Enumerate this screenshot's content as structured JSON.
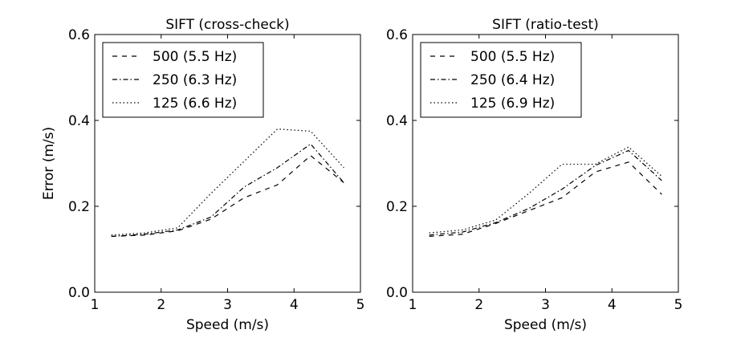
{
  "chart_data": [
    {
      "type": "line",
      "title": "SIFT (cross-check)",
      "xlabel": "Speed (m/s)",
      "ylabel": "Error (m/s)",
      "xlim": [
        1,
        5
      ],
      "ylim": [
        0,
        0.6
      ],
      "xticks": [
        "1",
        "2",
        "3",
        "4",
        "5"
      ],
      "yticks": [
        "0.0",
        "0.2",
        "0.4",
        "0.6"
      ],
      "grid": false,
      "legend_position": "top-left",
      "series": [
        {
          "name": "500 (5.5 Hz)",
          "dash": "dashed",
          "x": [
            1.25,
            1.75,
            2.25,
            2.75,
            3.25,
            3.75,
            4.25,
            4.75
          ],
          "y": [
            0.13,
            0.133,
            0.143,
            0.17,
            0.22,
            0.25,
            0.318,
            0.255
          ]
        },
        {
          "name": "250 (6.3 Hz)",
          "dash": "dashdot",
          "x": [
            1.25,
            1.75,
            2.25,
            2.75,
            3.25,
            3.75,
            4.25,
            4.75
          ],
          "y": [
            0.13,
            0.135,
            0.145,
            0.175,
            0.245,
            0.29,
            0.345,
            0.255
          ]
        },
        {
          "name": "125 (6.6 Hz)",
          "dash": "dotted",
          "x": [
            1.25,
            1.75,
            2.25,
            2.75,
            3.25,
            3.75,
            4.25,
            4.75
          ],
          "y": [
            0.133,
            0.138,
            0.15,
            0.23,
            0.305,
            0.38,
            0.375,
            0.29
          ]
        }
      ]
    },
    {
      "type": "line",
      "title": "SIFT (ratio-test)",
      "xlabel": "Speed (m/s)",
      "ylabel": "",
      "xlim": [
        1,
        5
      ],
      "ylim": [
        0,
        0.6
      ],
      "xticks": [
        "1",
        "2",
        "3",
        "4",
        "5"
      ],
      "yticks": [
        "0.0",
        "0.2",
        "0.4",
        "0.6"
      ],
      "grid": false,
      "legend_position": "top-left",
      "series": [
        {
          "name": "500 (5.5 Hz)",
          "dash": "dashed",
          "x": [
            1.25,
            1.75,
            2.25,
            2.75,
            3.25,
            3.75,
            4.25,
            4.75
          ],
          "y": [
            0.13,
            0.135,
            0.16,
            0.19,
            0.22,
            0.28,
            0.303,
            0.228
          ]
        },
        {
          "name": "250 (6.4 Hz)",
          "dash": "dashdot",
          "x": [
            1.25,
            1.75,
            2.25,
            2.75,
            3.25,
            3.75,
            4.25,
            4.75
          ],
          "y": [
            0.133,
            0.14,
            0.162,
            0.195,
            0.24,
            0.295,
            0.33,
            0.26
          ]
        },
        {
          "name": "125 (6.9 Hz)",
          "dash": "dotted",
          "x": [
            1.25,
            1.75,
            2.25,
            2.75,
            3.25,
            3.75,
            4.25,
            4.75
          ],
          "y": [
            0.138,
            0.145,
            0.168,
            0.23,
            0.298,
            0.298,
            0.338,
            0.27
          ]
        }
      ]
    }
  ]
}
